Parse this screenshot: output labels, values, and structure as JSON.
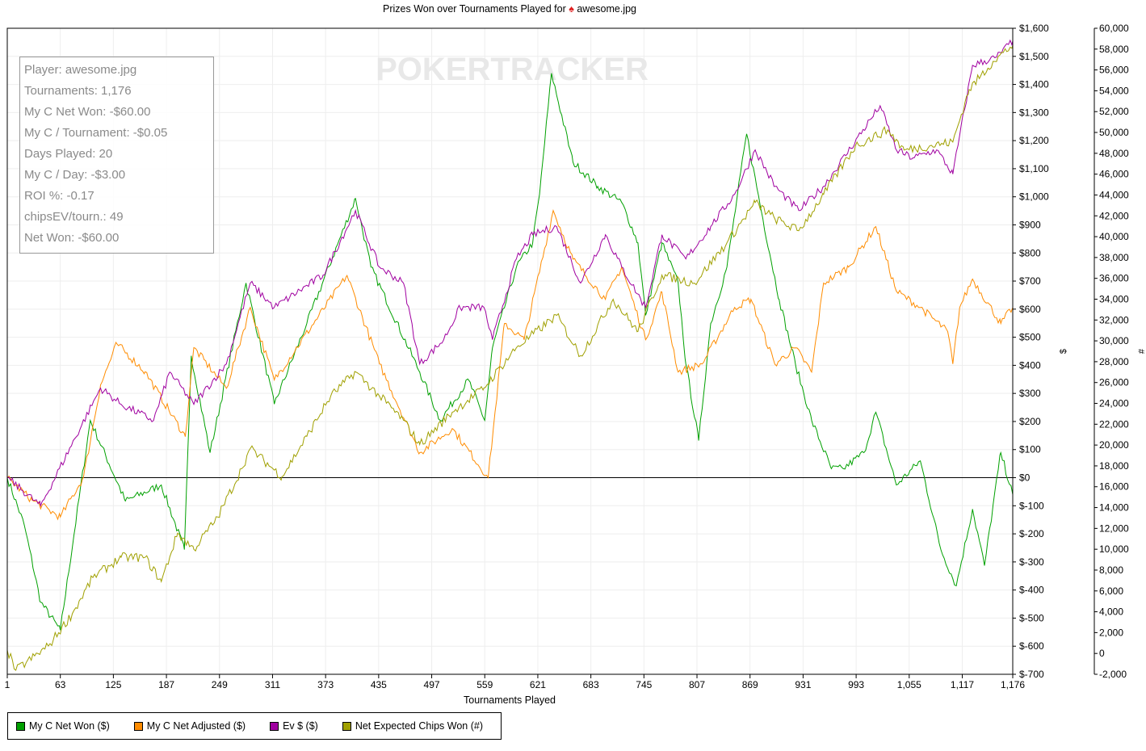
{
  "title": {
    "text": "Prizes Won over Tournaments Played for",
    "player": "awesome.jpg",
    "icon": "spade-icon"
  },
  "watermark": "POKERTRACKER",
  "stats": [
    "Player: awesome.jpg",
    "Tournaments: 1,176",
    "My C Net Won: -$60.00",
    "My C / Tournament: -$0.05",
    "Days Played: 20",
    "My C / Day: -$3.00",
    "ROI %: -0.17",
    "chipsEV/tourn.: 49",
    "Net Won: -$60.00"
  ],
  "chart_data": {
    "type": "line",
    "title": "Prizes Won over Tournaments Played for awesome.jpg",
    "xlabel": "Tournaments Played",
    "ylabel": "$",
    "y2label": "#",
    "xlim": [
      1,
      1176
    ],
    "ylim": [
      -700,
      1600
    ],
    "y2lim": [
      -2000,
      60000
    ],
    "xticks": [
      1,
      63,
      125,
      187,
      249,
      311,
      373,
      435,
      497,
      559,
      621,
      683,
      745,
      807,
      869,
      931,
      993,
      1055,
      1117,
      1176
    ],
    "xtick_labels": [
      "1",
      "63",
      "125",
      "187",
      "249",
      "311",
      "373",
      "435",
      "497",
      "559",
      "621",
      "683",
      "745",
      "807",
      "869",
      "931",
      "993",
      "1,055",
      "1,117",
      "1,176"
    ],
    "yticks": [
      1600,
      1500,
      1400,
      1300,
      1200,
      1100,
      1000,
      900,
      800,
      700,
      600,
      500,
      400,
      300,
      200,
      100,
      0,
      -100,
      -200,
      -300,
      -400,
      -500,
      -600,
      -700
    ],
    "ytick_labels": [
      "$1,600",
      "$1,500",
      "$1,400",
      "$1,300",
      "$1,200",
      "$1,100",
      "$1,000",
      "$900",
      "$800",
      "$700",
      "$600",
      "$500",
      "$400",
      "$300",
      "$200",
      "$100",
      "$0",
      "$-100",
      "$-200",
      "$-300",
      "$-400",
      "$-500",
      "$-600",
      "$-700"
    ],
    "y2ticks": [
      60000,
      58000,
      56000,
      54000,
      52000,
      50000,
      48000,
      46000,
      44000,
      42000,
      40000,
      38000,
      36000,
      34000,
      32000,
      30000,
      28000,
      26000,
      24000,
      22000,
      20000,
      18000,
      16000,
      14000,
      12000,
      10000,
      8000,
      6000,
      4000,
      2000,
      0,
      -2000
    ],
    "y2tick_labels": [
      "60,000",
      "58,000",
      "56,000",
      "54,000",
      "52,000",
      "50,000",
      "48,000",
      "46,000",
      "44,000",
      "42,000",
      "40,000",
      "38,000",
      "36,000",
      "34,000",
      "32,000",
      "30,000",
      "28,000",
      "26,000",
      "24,000",
      "22,000",
      "20,000",
      "18,000",
      "16,000",
      "14,000",
      "12,000",
      "10,000",
      "8,000",
      "6,000",
      "4,000",
      "2,000",
      "0",
      "-2,000"
    ],
    "grid": true,
    "legend_position": "bottom-left",
    "series": [
      {
        "name": "My C Net Won ($)",
        "color": "#00a000",
        "axis": "left",
        "points": [
          [
            1,
            0
          ],
          [
            21,
            -170
          ],
          [
            40,
            -443
          ],
          [
            63,
            -543
          ],
          [
            98,
            204
          ],
          [
            139,
            -83
          ],
          [
            181,
            -26
          ],
          [
            208,
            -256
          ],
          [
            216,
            434
          ],
          [
            238,
            89
          ],
          [
            280,
            693
          ],
          [
            313,
            262
          ],
          [
            351,
            549
          ],
          [
            408,
            994
          ],
          [
            426,
            750
          ],
          [
            483,
            376
          ],
          [
            507,
            204
          ],
          [
            540,
            348
          ],
          [
            559,
            204
          ],
          [
            568,
            463
          ],
          [
            596,
            750
          ],
          [
            615,
            836
          ],
          [
            623,
            1009
          ],
          [
            637,
            1440
          ],
          [
            662,
            1124
          ],
          [
            691,
            1037
          ],
          [
            719,
            980
          ],
          [
            738,
            836
          ],
          [
            747,
            578
          ],
          [
            766,
            836
          ],
          [
            785,
            693
          ],
          [
            794,
            405
          ],
          [
            809,
            132
          ],
          [
            823,
            549
          ],
          [
            842,
            750
          ],
          [
            865,
            1224
          ],
          [
            884,
            922
          ],
          [
            903,
            635
          ],
          [
            922,
            405
          ],
          [
            941,
            204
          ],
          [
            964,
            32
          ],
          [
            978,
            32
          ],
          [
            1002,
            89
          ],
          [
            1016,
            233
          ],
          [
            1040,
            -26
          ],
          [
            1068,
            60
          ],
          [
            1092,
            -256
          ],
          [
            1110,
            -385
          ],
          [
            1129,
            -112
          ],
          [
            1143,
            -313
          ],
          [
            1162,
            89
          ],
          [
            1176,
            -60
          ]
        ]
      },
      {
        "name": "My C Net Adjusted ($)",
        "color": "#ff8c00",
        "axis": "left",
        "points": [
          [
            1,
            0
          ],
          [
            30,
            -80
          ],
          [
            63,
            -140
          ],
          [
            90,
            0
          ],
          [
            110,
            330
          ],
          [
            129,
            477
          ],
          [
            162,
            377
          ],
          [
            209,
            146
          ],
          [
            219,
            463
          ],
          [
            257,
            318
          ],
          [
            285,
            606
          ],
          [
            313,
            348
          ],
          [
            398,
            720
          ],
          [
            436,
            405
          ],
          [
            483,
            89
          ],
          [
            521,
            175
          ],
          [
            563,
            0
          ],
          [
            582,
            549
          ],
          [
            605,
            491
          ],
          [
            639,
            951
          ],
          [
            662,
            778
          ],
          [
            700,
            635
          ],
          [
            719,
            750
          ],
          [
            747,
            491
          ],
          [
            766,
            661
          ],
          [
            785,
            376
          ],
          [
            813,
            405
          ],
          [
            851,
            606
          ],
          [
            870,
            635
          ],
          [
            898,
            404
          ],
          [
            922,
            462
          ],
          [
            941,
            376
          ],
          [
            955,
            693
          ],
          [
            984,
            750
          ],
          [
            1016,
            894
          ],
          [
            1040,
            664
          ],
          [
            1068,
            606
          ],
          [
            1100,
            520
          ],
          [
            1106,
            405
          ],
          [
            1114,
            606
          ],
          [
            1129,
            707
          ],
          [
            1162,
            549
          ],
          [
            1176,
            606
          ]
        ]
      },
      {
        "name": "Ev $ ($)",
        "color": "#a000a0",
        "axis": "left",
        "points": [
          [
            1,
            0
          ],
          [
            40,
            -100
          ],
          [
            110,
            319
          ],
          [
            134,
            261
          ],
          [
            172,
            204
          ],
          [
            191,
            376
          ],
          [
            219,
            261
          ],
          [
            257,
            405
          ],
          [
            285,
            693
          ],
          [
            313,
            606
          ],
          [
            370,
            721
          ],
          [
            408,
            951
          ],
          [
            436,
            750
          ],
          [
            464,
            693
          ],
          [
            483,
            405
          ],
          [
            511,
            491
          ],
          [
            530,
            606
          ],
          [
            558,
            606
          ],
          [
            568,
            491
          ],
          [
            596,
            779
          ],
          [
            615,
            865
          ],
          [
            643,
            894
          ],
          [
            671,
            693
          ],
          [
            700,
            865
          ],
          [
            719,
            750
          ],
          [
            747,
            606
          ],
          [
            766,
            865
          ],
          [
            794,
            779
          ],
          [
            823,
            894
          ],
          [
            851,
            1009
          ],
          [
            875,
            1167
          ],
          [
            898,
            1037
          ],
          [
            926,
            951
          ],
          [
            955,
            1037
          ],
          [
            1021,
            1324
          ],
          [
            1040,
            1167
          ],
          [
            1059,
            1138
          ],
          [
            1087,
            1167
          ],
          [
            1106,
            1081
          ],
          [
            1129,
            1468
          ],
          [
            1157,
            1497
          ],
          [
            1176,
            1555
          ]
        ]
      },
      {
        "name": "Net Expected Chips Won (#)",
        "color": "#a0a000",
        "axis": "right",
        "points": [
          [
            1,
            322
          ],
          [
            11,
            -1613
          ],
          [
            49,
            709
          ],
          [
            77,
            3805
          ],
          [
            101,
            7288
          ],
          [
            134,
            9223
          ],
          [
            162,
            9223
          ],
          [
            181,
            6900
          ],
          [
            200,
            11545
          ],
          [
            219,
            10000
          ],
          [
            247,
            13093
          ],
          [
            275,
            17737
          ],
          [
            285,
            19672
          ],
          [
            322,
            16963
          ],
          [
            351,
            20833
          ],
          [
            379,
            24700
          ],
          [
            408,
            27025
          ],
          [
            436,
            24700
          ],
          [
            464,
            22381
          ],
          [
            483,
            20059
          ],
          [
            521,
            23155
          ],
          [
            558,
            25477
          ],
          [
            596,
            29347
          ],
          [
            643,
            32443
          ],
          [
            671,
            28573
          ],
          [
            709,
            33991
          ],
          [
            738,
            30895
          ],
          [
            766,
            36313
          ],
          [
            804,
            35539
          ],
          [
            842,
            39409
          ],
          [
            875,
            43279
          ],
          [
            898,
            41731
          ],
          [
            926,
            40570
          ],
          [
            955,
            44053
          ],
          [
            992,
            48697
          ],
          [
            1030,
            50245
          ],
          [
            1049,
            48310
          ],
          [
            1106,
            49084
          ],
          [
            1125,
            54115
          ],
          [
            1153,
            56824
          ],
          [
            1176,
            58372
          ]
        ]
      }
    ]
  }
}
